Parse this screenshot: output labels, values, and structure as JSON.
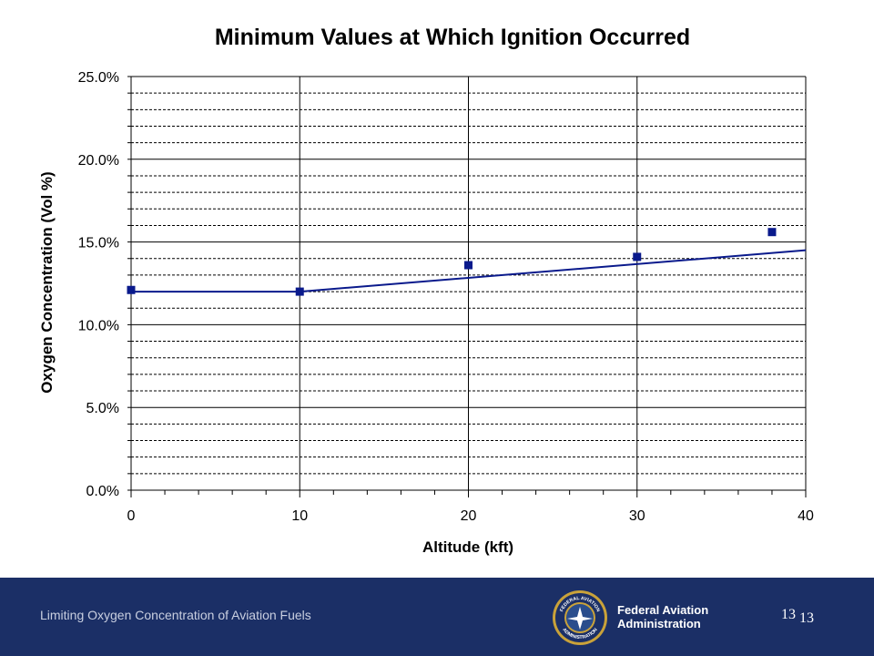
{
  "chart_data": {
    "type": "scatter",
    "title": "Minimum Values at Which Ignition Occurred",
    "xlabel": "Altitude (kft)",
    "ylabel": "Oxygen Concentration (Vol %)",
    "xlim": [
      0,
      40
    ],
    "ylim": [
      0,
      25
    ],
    "x_ticks": [
      "0",
      "10",
      "20",
      "30",
      "40"
    ],
    "y_ticks": [
      "0.0%",
      "5.0%",
      "10.0%",
      "15.0%",
      "20.0%",
      "25.0%"
    ],
    "grid": "major solid, minor dashed",
    "points": [
      {
        "x": 0,
        "y": 12.1
      },
      {
        "x": 10,
        "y": 12.0
      },
      {
        "x": 20,
        "y": 13.6
      },
      {
        "x": 30,
        "y": 14.1
      },
      {
        "x": 38,
        "y": 15.6
      }
    ],
    "fit_line": [
      {
        "x": 0,
        "y": 12.0
      },
      {
        "x": 10,
        "y": 12.0
      },
      {
        "x": 40,
        "y": 14.5
      }
    ],
    "colors": {
      "marker": "#0a1a8c",
      "line": "#0a1a8c"
    }
  },
  "footer": {
    "text": "Limiting Oxygen Concentration of Aviation Fuels",
    "agency_line1": "Federal Aviation",
    "agency_line2": "Administration",
    "page_number": "13",
    "seal_text": "FEDERAL AVIATION ADMINISTRATION",
    "background": "#1b2f66"
  }
}
